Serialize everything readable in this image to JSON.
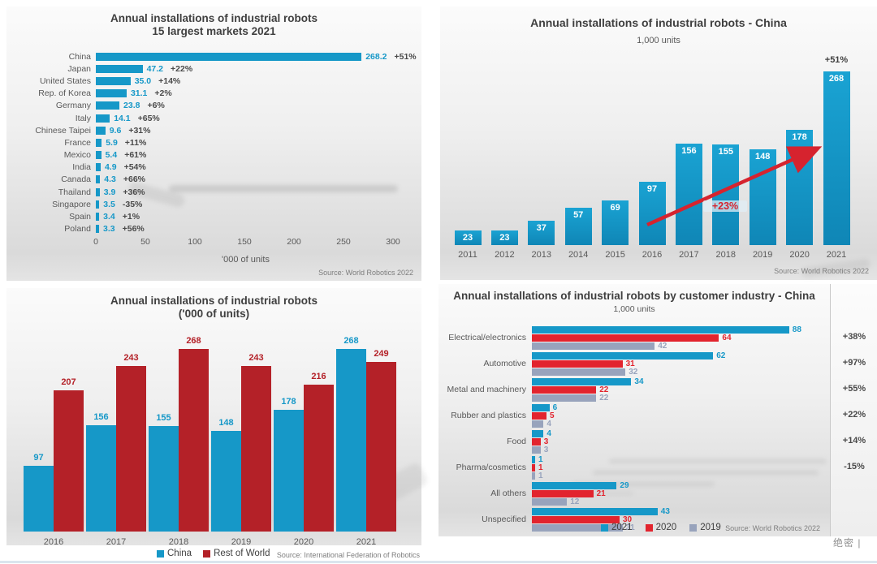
{
  "page": {
    "watermark": "绝密 |"
  },
  "colors": {
    "blue": "#1698c8",
    "red_bright": "#e2242e",
    "red_dark": "#b42128",
    "gray_blue": "#98a3bc"
  },
  "chart_data": [
    {
      "id": "markets-2021",
      "type": "bar",
      "orientation": "horizontal",
      "title_line1": "Annual installations of industrial robots",
      "title_line2": "15 largest markets 2021",
      "xlabel": "'000 of units",
      "source": "Source: World Robotics 2022",
      "xlim": [
        0,
        300
      ],
      "x_ticks": [
        0,
        50,
        100,
        150,
        200,
        250,
        300
      ],
      "bar_color": "#1698c8",
      "rows": [
        {
          "label": "China",
          "value": 268.2,
          "value_label": "268.2",
          "change": "+51%"
        },
        {
          "label": "Japan",
          "value": 47.2,
          "value_label": "47.2",
          "change": "+22%"
        },
        {
          "label": "United States",
          "value": 35.0,
          "value_label": "35.0",
          "change": "+14%"
        },
        {
          "label": "Rep. of Korea",
          "value": 31.1,
          "value_label": "31.1",
          "change": "+2%"
        },
        {
          "label": "Germany",
          "value": 23.8,
          "value_label": "23.8",
          "change": "+6%"
        },
        {
          "label": "Italy",
          "value": 14.1,
          "value_label": "14.1",
          "change": "+65%"
        },
        {
          "label": "Chinese Taipei",
          "value": 9.6,
          "value_label": "9.6",
          "change": "+31%"
        },
        {
          "label": "France",
          "value": 5.9,
          "value_label": "5.9",
          "change": "+11%"
        },
        {
          "label": "Mexico",
          "value": 5.4,
          "value_label": "5.4",
          "change": "+61%"
        },
        {
          "label": "India",
          "value": 4.9,
          "value_label": "4.9",
          "change": "+54%"
        },
        {
          "label": "Canada",
          "value": 4.3,
          "value_label": "4.3",
          "change": "+66%"
        },
        {
          "label": "Thailand",
          "value": 3.9,
          "value_label": "3.9",
          "change": "+36%"
        },
        {
          "label": "Singapore",
          "value": 3.5,
          "value_label": "3.5",
          "change": "-35%"
        },
        {
          "label": "Spain",
          "value": 3.4,
          "value_label": "3.4",
          "change": "+1%"
        },
        {
          "label": "Poland",
          "value": 3.3,
          "value_label": "3.3",
          "change": "+56%"
        }
      ]
    },
    {
      "id": "china-annual",
      "type": "bar",
      "orientation": "vertical",
      "title": "Annual installations of industrial robots - China",
      "subtitle": "1,000 units",
      "source": "Source: World Robotics 2022",
      "categories": [
        "2011",
        "2012",
        "2013",
        "2014",
        "2015",
        "2016",
        "2017",
        "2018",
        "2019",
        "2020",
        "2021"
      ],
      "values": [
        23,
        23,
        37,
        57,
        69,
        97,
        156,
        155,
        148,
        178,
        268
      ],
      "bar_color": "#1698c8",
      "annotations": {
        "peak": "+51%",
        "trend": "+23%"
      }
    },
    {
      "id": "china-vs-rest-of-world",
      "type": "bar",
      "orientation": "vertical-grouped",
      "title_line1": "Annual installations of industrial robots",
      "title_line2": "('000 of units)",
      "source": "Source: International Federation of Robotics",
      "legend_position": "bottom",
      "categories": [
        "2016",
        "2017",
        "2018",
        "2019",
        "2020",
        "2021"
      ],
      "series": [
        {
          "name": "China",
          "color": "#1698c8",
          "values": [
            97,
            156,
            155,
            148,
            178,
            268
          ]
        },
        {
          "name": "Rest of World",
          "color": "#b42128",
          "values": [
            207,
            243,
            268,
            243,
            216,
            249
          ]
        }
      ]
    },
    {
      "id": "by-customer-industry-china",
      "type": "bar",
      "orientation": "horizontal-grouped",
      "title": "Annual installations of industrial robots by customer industry - China",
      "subtitle": "1,000 units",
      "source": "Source: World Robotics 2022",
      "legend_position": "bottom",
      "categories": [
        "Electrical/electronics",
        "Automotive",
        "Metal and machinery",
        "Rubber and plastics",
        "Food",
        "Pharma/cosmetics",
        "All others",
        "Unspecified"
      ],
      "series": [
        {
          "name": "2021",
          "color": "#1698c8",
          "values": [
            88,
            62,
            34,
            6,
            4,
            1,
            29,
            43
          ]
        },
        {
          "name": "2020",
          "color": "#e2242e",
          "values": [
            64,
            31,
            22,
            5,
            3,
            1,
            21,
            30
          ]
        },
        {
          "name": "2019",
          "color": "#98a3bc",
          "values": [
            42,
            32,
            22,
            4,
            3,
            1,
            12,
            31
          ]
        }
      ],
      "changes": [
        "+38%",
        "+97%",
        "+55%",
        "+22%",
        "+14%",
        "-15%",
        "",
        ""
      ]
    }
  ]
}
